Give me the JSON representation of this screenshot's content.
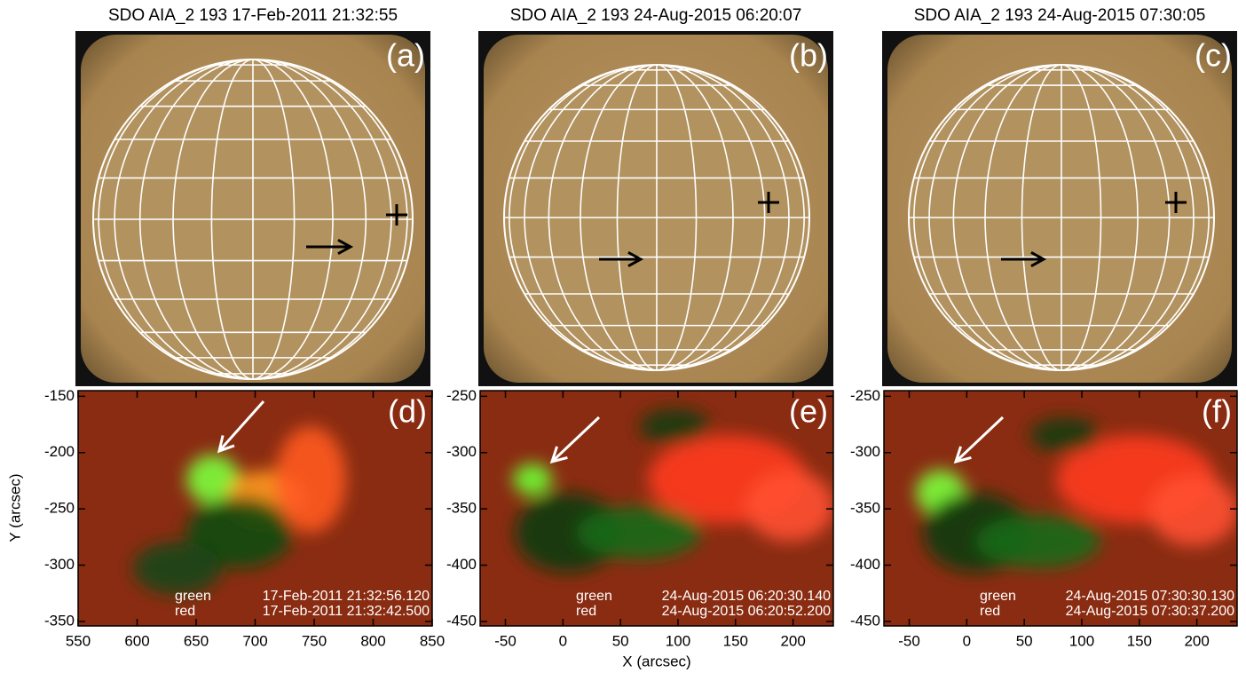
{
  "panels": [
    {
      "title": "SDO AIA_2 193 17-Feb-2011 21:32:55",
      "label": "(a)"
    },
    {
      "title": "SDO AIA_2 193 24-Aug-2015 06:20:07",
      "label": "(b)"
    },
    {
      "title": "SDO AIA_2 193 24-Aug-2015 07:30:05",
      "label": "(c)"
    }
  ],
  "overlays": [
    {
      "label": "(d)",
      "legend": [
        {
          "name": "green",
          "time": "17-Feb-2011 21:32:56.120"
        },
        {
          "name": "red",
          "time": "17-Feb-2011 21:32:42.500"
        }
      ],
      "xlim": [
        550,
        850
      ],
      "ylim": [
        -354,
        -145
      ],
      "xticks": [
        550,
        600,
        650,
        700,
        750,
        800,
        850
      ],
      "yticks": [
        -150,
        -200,
        -250,
        -300,
        -350
      ]
    },
    {
      "label": "(e)",
      "legend": [
        {
          "name": "green",
          "time": "24-Aug-2015 06:20:30.140"
        },
        {
          "name": "red",
          "time": "24-Aug-2015 06:20:52.200"
        }
      ],
      "xlim": [
        -72,
        235
      ],
      "ylim": [
        -454,
        -245
      ],
      "xticks": [
        -50,
        0,
        50,
        100,
        150,
        200
      ],
      "yticks": [
        -250,
        -300,
        -350,
        -400,
        -450
      ]
    },
    {
      "label": "(f)",
      "legend": [
        {
          "name": "green",
          "time": "24-Aug-2015 07:30:30.130"
        },
        {
          "name": "red",
          "time": "24-Aug-2015 07:30:37.200"
        }
      ],
      "xlim": [
        -72,
        235
      ],
      "ylim": [
        -454,
        -245
      ],
      "xticks": [
        -50,
        0,
        50,
        100,
        150,
        200
      ],
      "yticks": [
        -250,
        -300,
        -350,
        -400,
        -450
      ]
    }
  ],
  "xlabel": "X (arcsec)",
  "ylabel": "Y (arcsec)"
}
